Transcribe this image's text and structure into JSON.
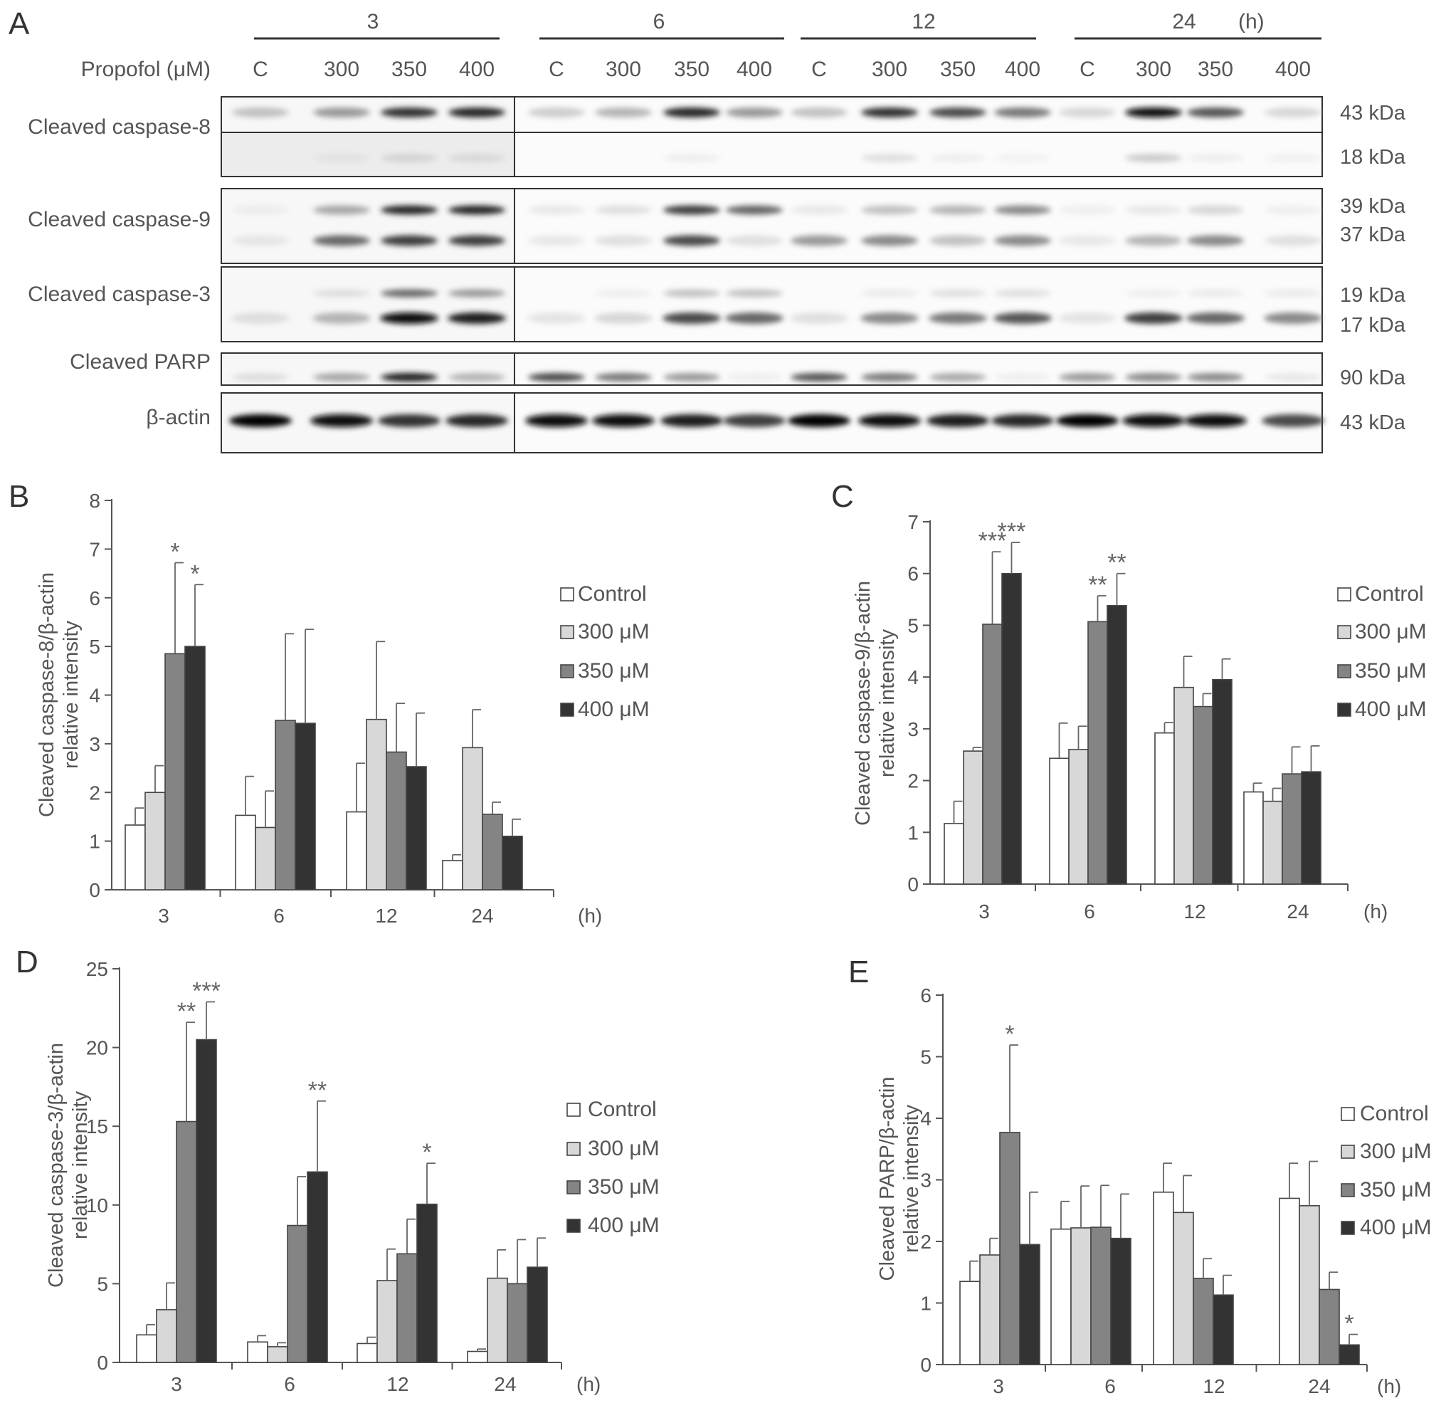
{
  "figure": {
    "panel_letters": [
      "A",
      "B",
      "C",
      "D",
      "E"
    ],
    "western_blot": {
      "time_groups": [
        "3",
        "6",
        "12",
        "24"
      ],
      "time_unit": "(h)",
      "row_header": "Propofol (μM)",
      "lanes": [
        "C",
        "300",
        "350",
        "400"
      ],
      "bands": [
        {
          "name": "Cleaved caspase-8",
          "kda": [
            "43 kDa",
            "18 kDa"
          ]
        },
        {
          "name": "Cleaved caspase-9",
          "kda": [
            "39 kDa",
            "37 kDa"
          ]
        },
        {
          "name": "Cleaved caspase-3",
          "kda": [
            "19 kDa",
            "17 kDa"
          ]
        },
        {
          "name": "Cleaved PARP",
          "kda": [
            "90 kDa"
          ]
        },
        {
          "name": "β-actin",
          "kda": [
            "43 kDa"
          ]
        }
      ]
    }
  },
  "chart_data": [
    {
      "panel": "B",
      "type": "bar",
      "categories": [
        "3",
        "6",
        "12",
        "24"
      ],
      "x_unit": "(h)",
      "ylabel": [
        "Cleaved caspase-8/β-actin",
        "relative intensity"
      ],
      "ylim": [
        0,
        8
      ],
      "yticks": [
        0,
        1,
        2,
        3,
        4,
        5,
        6,
        7,
        8
      ],
      "legend_placement": "right",
      "series": [
        {
          "name": "Control",
          "color": "#ffffff",
          "values": [
            1.33,
            1.53,
            1.6,
            0.6
          ],
          "errors": [
            0.35,
            0.8,
            1.0,
            0.12
          ],
          "stars": [
            "",
            "",
            "",
            ""
          ]
        },
        {
          "name": "300 μM",
          "color": "#d8d8d8",
          "values": [
            2.0,
            1.28,
            3.5,
            2.92
          ],
          "errors": [
            0.55,
            0.75,
            1.6,
            0.78
          ],
          "stars": [
            "",
            "",
            "",
            ""
          ]
        },
        {
          "name": "350 μM",
          "color": "#848484",
          "values": [
            4.85,
            3.48,
            2.83,
            1.55
          ],
          "errors": [
            1.87,
            1.78,
            1.0,
            0.25
          ],
          "stars": [
            "*",
            "",
            "",
            ""
          ]
        },
        {
          "name": "400 μM",
          "color": "#333333",
          "values": [
            5.0,
            3.42,
            2.53,
            1.1
          ],
          "errors": [
            1.27,
            1.93,
            1.1,
            0.35
          ],
          "stars": [
            "*",
            "",
            "",
            ""
          ]
        }
      ]
    },
    {
      "panel": "C",
      "type": "bar",
      "categories": [
        "3",
        "6",
        "12",
        "24"
      ],
      "x_unit": "(h)",
      "ylabel": [
        "Cleaved caspase-9/β-actin",
        "relative intensity"
      ],
      "ylim": [
        0,
        7
      ],
      "yticks": [
        0,
        1,
        2,
        3,
        4,
        5,
        6,
        7
      ],
      "legend_placement": "right",
      "series": [
        {
          "name": "Control",
          "color": "#ffffff",
          "values": [
            1.17,
            2.43,
            2.92,
            1.78
          ],
          "errors": [
            0.43,
            0.68,
            0.2,
            0.17
          ],
          "stars": [
            "",
            "",
            "",
            ""
          ]
        },
        {
          "name": "300 μM",
          "color": "#d8d8d8",
          "values": [
            2.57,
            2.6,
            3.8,
            1.6
          ],
          "errors": [
            0.07,
            0.45,
            0.6,
            0.25
          ],
          "stars": [
            "",
            "",
            "",
            ""
          ]
        },
        {
          "name": "350 μM",
          "color": "#848484",
          "values": [
            5.02,
            5.07,
            3.43,
            2.13
          ],
          "errors": [
            1.4,
            0.5,
            0.25,
            0.52
          ],
          "stars": [
            "***",
            "**",
            "",
            ""
          ]
        },
        {
          "name": "400 μM",
          "color": "#333333",
          "values": [
            6.0,
            5.38,
            3.95,
            2.17
          ],
          "errors": [
            0.6,
            0.62,
            0.4,
            0.5
          ],
          "stars": [
            "***",
            "**",
            "",
            ""
          ]
        }
      ]
    },
    {
      "panel": "D",
      "type": "bar",
      "categories": [
        "3",
        "6",
        "12",
        "24"
      ],
      "x_unit": "(h)",
      "ylabel": [
        "Cleaved caspase-3/β-actin",
        "relative intensity"
      ],
      "ylim": [
        0,
        25
      ],
      "yticks": [
        0,
        5,
        10,
        15,
        20,
        25
      ],
      "legend_placement": "right",
      "series": [
        {
          "name": "Control",
          "color": "#ffffff",
          "values": [
            1.75,
            1.3,
            1.2,
            0.7
          ],
          "errors": [
            0.65,
            0.4,
            0.4,
            0.15
          ],
          "stars": [
            "",
            "",
            "",
            ""
          ]
        },
        {
          "name": "300 μM",
          "color": "#d8d8d8",
          "values": [
            3.35,
            1.0,
            5.2,
            5.35
          ],
          "errors": [
            1.7,
            0.25,
            2.0,
            1.8
          ],
          "stars": [
            "",
            "",
            "",
            ""
          ]
        },
        {
          "name": "350 μM",
          "color": "#848484",
          "values": [
            15.3,
            8.7,
            6.9,
            5.0
          ],
          "errors": [
            6.3,
            3.1,
            2.2,
            2.8
          ],
          "stars": [
            "**",
            "",
            "",
            ""
          ]
        },
        {
          "name": "400 μM",
          "color": "#333333",
          "values": [
            20.5,
            12.1,
            10.05,
            6.05
          ],
          "errors": [
            2.4,
            4.5,
            2.6,
            1.85
          ],
          "stars": [
            "***",
            "**",
            "*",
            ""
          ]
        }
      ]
    },
    {
      "panel": "E",
      "type": "bar",
      "categories": [
        "3",
        "6",
        "12",
        "24"
      ],
      "x_unit": "(h)",
      "ylabel": [
        "Cleaved PARP/β-actin",
        "relative intensity"
      ],
      "ylim": [
        0,
        6
      ],
      "yticks": [
        0,
        1,
        2,
        3,
        4,
        5,
        6
      ],
      "legend_placement": "right",
      "series": [
        {
          "name": "Control",
          "color": "#ffffff",
          "values": [
            1.35,
            2.2,
            2.8,
            2.7
          ],
          "errors": [
            0.33,
            0.45,
            0.47,
            0.57
          ],
          "stars": [
            "",
            "",
            "",
            ""
          ]
        },
        {
          "name": "300 μM",
          "color": "#d8d8d8",
          "values": [
            1.78,
            2.22,
            2.47,
            2.58
          ],
          "errors": [
            0.27,
            0.68,
            0.6,
            0.72
          ],
          "stars": [
            "",
            "",
            "",
            ""
          ]
        },
        {
          "name": "350 μM",
          "color": "#848484",
          "values": [
            3.77,
            2.23,
            1.4,
            1.22
          ],
          "errors": [
            1.42,
            0.68,
            0.32,
            0.28
          ],
          "stars": [
            "*",
            "",
            "",
            ""
          ]
        },
        {
          "name": "400 μM",
          "color": "#333333",
          "values": [
            1.95,
            2.05,
            1.13,
            0.32
          ],
          "errors": [
            0.85,
            0.72,
            0.32,
            0.17
          ],
          "stars": [
            "",
            "",
            "",
            "*"
          ]
        }
      ]
    }
  ]
}
